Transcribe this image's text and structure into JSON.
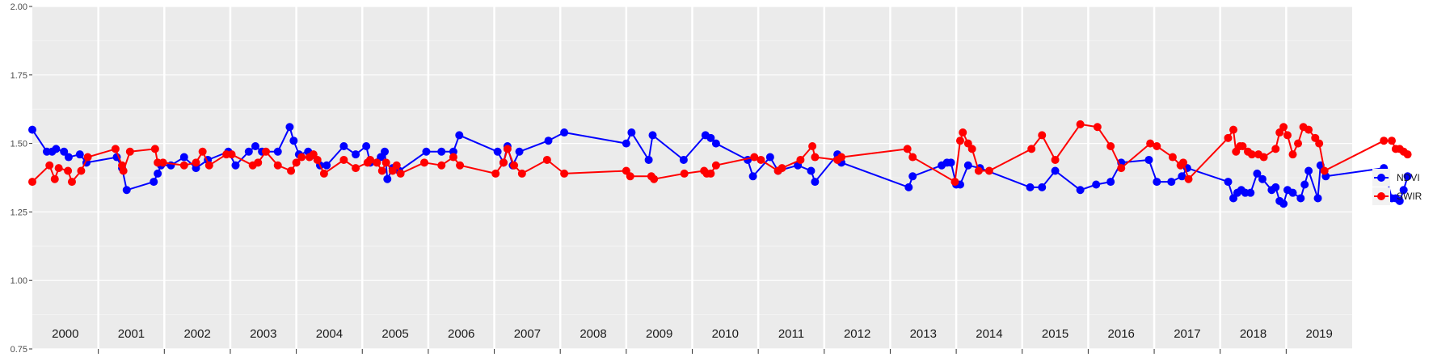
{
  "chart_data": {
    "type": "line",
    "title": "",
    "xlabel": "",
    "ylabel": "",
    "ylim": [
      0.75,
      2.0
    ],
    "yticks": [
      "0.75",
      "1.00",
      "1.25",
      "1.50",
      "1.75",
      "2.00"
    ],
    "ytick_values": [
      0.75,
      1.0,
      1.25,
      1.5,
      1.75,
      2.0
    ],
    "x_range": [
      2000.0,
      2020.0
    ],
    "year_labels": [
      "2000",
      "2001",
      "2002",
      "2003",
      "2004",
      "2005",
      "2006",
      "2007",
      "2008",
      "2009",
      "2010",
      "2011",
      "2012",
      "2013",
      "2014",
      "2015",
      "2016",
      "2017",
      "2018",
      "2019"
    ],
    "grid": true,
    "legend_position": "right",
    "series": [
      {
        "name": "NDVI",
        "color": "#0000ff",
        "points": [
          [
            2000.0,
            1.55
          ],
          [
            2000.22,
            1.47
          ],
          [
            2000.3,
            1.47
          ],
          [
            2000.36,
            1.48
          ],
          [
            2000.48,
            1.47
          ],
          [
            2000.55,
            1.45
          ],
          [
            2000.72,
            1.46
          ],
          [
            2000.82,
            1.43
          ],
          [
            2001.28,
            1.45
          ],
          [
            2001.36,
            1.41
          ],
          [
            2001.43,
            1.33
          ],
          [
            2001.84,
            1.36
          ],
          [
            2001.9,
            1.39
          ],
          [
            2001.95,
            1.42
          ],
          [
            2002.1,
            1.42
          ],
          [
            2002.3,
            1.45
          ],
          [
            2002.48,
            1.41
          ],
          [
            2002.66,
            1.44
          ],
          [
            2002.97,
            1.47
          ],
          [
            2003.08,
            1.42
          ],
          [
            2003.28,
            1.47
          ],
          [
            2003.38,
            1.49
          ],
          [
            2003.48,
            1.47
          ],
          [
            2003.72,
            1.47
          ],
          [
            2003.9,
            1.56
          ],
          [
            2003.96,
            1.51
          ],
          [
            2004.04,
            1.46
          ],
          [
            2004.18,
            1.47
          ],
          [
            2004.36,
            1.42
          ],
          [
            2004.46,
            1.42
          ],
          [
            2004.72,
            1.49
          ],
          [
            2004.9,
            1.46
          ],
          [
            2005.06,
            1.49
          ],
          [
            2005.12,
            1.43
          ],
          [
            2005.28,
            1.45
          ],
          [
            2005.34,
            1.47
          ],
          [
            2005.38,
            1.37
          ],
          [
            2005.46,
            1.41
          ],
          [
            2005.56,
            1.4
          ],
          [
            2005.97,
            1.47
          ],
          [
            2006.2,
            1.47
          ],
          [
            2006.38,
            1.47
          ],
          [
            2006.47,
            1.53
          ],
          [
            2007.05,
            1.47
          ],
          [
            2007.14,
            1.43
          ],
          [
            2007.2,
            1.49
          ],
          [
            2007.28,
            1.42
          ],
          [
            2007.38,
            1.47
          ],
          [
            2007.82,
            1.51
          ],
          [
            2008.06,
            1.54
          ],
          [
            2009.0,
            1.5
          ],
          [
            2009.08,
            1.54
          ],
          [
            2009.34,
            1.44
          ],
          [
            2009.4,
            1.53
          ],
          [
            2009.87,
            1.44
          ],
          [
            2010.2,
            1.53
          ],
          [
            2010.28,
            1.52
          ],
          [
            2010.36,
            1.5
          ],
          [
            2010.84,
            1.44
          ],
          [
            2010.92,
            1.38
          ],
          [
            2011.18,
            1.45
          ],
          [
            2011.3,
            1.4
          ],
          [
            2011.6,
            1.42
          ],
          [
            2011.8,
            1.4
          ],
          [
            2011.86,
            1.36
          ],
          [
            2012.2,
            1.46
          ],
          [
            2012.26,
            1.43
          ],
          [
            2013.28,
            1.34
          ],
          [
            2013.34,
            1.38
          ],
          [
            2013.78,
            1.42
          ],
          [
            2013.86,
            1.43
          ],
          [
            2013.92,
            1.43
          ],
          [
            2014.0,
            1.35
          ],
          [
            2014.06,
            1.35
          ],
          [
            2014.18,
            1.42
          ],
          [
            2014.36,
            1.41
          ],
          [
            2015.12,
            1.34
          ],
          [
            2015.3,
            1.34
          ],
          [
            2015.5,
            1.4
          ],
          [
            2015.88,
            1.33
          ],
          [
            2016.12,
            1.35
          ],
          [
            2016.34,
            1.36
          ],
          [
            2016.5,
            1.43
          ],
          [
            2016.92,
            1.44
          ],
          [
            2017.04,
            1.36
          ],
          [
            2017.26,
            1.36
          ],
          [
            2017.42,
            1.38
          ],
          [
            2017.5,
            1.41
          ],
          [
            2018.12,
            1.36
          ],
          [
            2018.2,
            1.3
          ],
          [
            2018.26,
            1.32
          ],
          [
            2018.32,
            1.33
          ],
          [
            2018.38,
            1.32
          ],
          [
            2018.46,
            1.32
          ],
          [
            2018.56,
            1.39
          ],
          [
            2018.64,
            1.37
          ],
          [
            2018.78,
            1.33
          ],
          [
            2018.84,
            1.34
          ],
          [
            2018.9,
            1.29
          ],
          [
            2018.96,
            1.28
          ],
          [
            2019.02,
            1.33
          ],
          [
            2019.1,
            1.32
          ],
          [
            2019.22,
            1.3
          ],
          [
            2019.28,
            1.35
          ],
          [
            2019.34,
            1.4
          ],
          [
            2019.48,
            1.3
          ],
          [
            2019.52,
            1.42
          ],
          [
            2019.6,
            1.38
          ],
          [
            2020.48,
            1.41
          ],
          [
            2020.6,
            1.3
          ],
          [
            2020.66,
            1.3
          ],
          [
            2020.72,
            1.29
          ],
          [
            2020.78,
            1.33
          ],
          [
            2020.84,
            1.38
          ]
        ]
      },
      {
        "name": "SWIR",
        "color": "#ff0000",
        "points": [
          [
            2000.0,
            1.36
          ],
          [
            2000.26,
            1.42
          ],
          [
            2000.34,
            1.37
          ],
          [
            2000.4,
            1.41
          ],
          [
            2000.54,
            1.4
          ],
          [
            2000.6,
            1.36
          ],
          [
            2000.74,
            1.4
          ],
          [
            2000.84,
            1.45
          ],
          [
            2001.26,
            1.48
          ],
          [
            2001.36,
            1.42
          ],
          [
            2001.38,
            1.4
          ],
          [
            2001.48,
            1.47
          ],
          [
            2001.86,
            1.48
          ],
          [
            2001.9,
            1.43
          ],
          [
            2001.98,
            1.43
          ],
          [
            2002.3,
            1.42
          ],
          [
            2002.48,
            1.43
          ],
          [
            2002.58,
            1.47
          ],
          [
            2002.68,
            1.42
          ],
          [
            2002.94,
            1.46
          ],
          [
            2003.02,
            1.46
          ],
          [
            2003.34,
            1.42
          ],
          [
            2003.42,
            1.43
          ],
          [
            2003.54,
            1.47
          ],
          [
            2003.72,
            1.42
          ],
          [
            2003.92,
            1.4
          ],
          [
            2004.0,
            1.43
          ],
          [
            2004.08,
            1.45
          ],
          [
            2004.2,
            1.45
          ],
          [
            2004.26,
            1.46
          ],
          [
            2004.32,
            1.44
          ],
          [
            2004.42,
            1.39
          ],
          [
            2004.72,
            1.44
          ],
          [
            2004.9,
            1.41
          ],
          [
            2005.08,
            1.43
          ],
          [
            2005.12,
            1.44
          ],
          [
            2005.22,
            1.43
          ],
          [
            2005.3,
            1.4
          ],
          [
            2005.36,
            1.43
          ],
          [
            2005.46,
            1.4
          ],
          [
            2005.52,
            1.42
          ],
          [
            2005.58,
            1.39
          ],
          [
            2005.94,
            1.43
          ],
          [
            2006.2,
            1.42
          ],
          [
            2006.38,
            1.45
          ],
          [
            2006.48,
            1.42
          ],
          [
            2007.02,
            1.39
          ],
          [
            2007.14,
            1.43
          ],
          [
            2007.2,
            1.48
          ],
          [
            2007.3,
            1.42
          ],
          [
            2007.42,
            1.39
          ],
          [
            2007.8,
            1.44
          ],
          [
            2008.06,
            1.39
          ],
          [
            2009.0,
            1.4
          ],
          [
            2009.06,
            1.38
          ],
          [
            2009.38,
            1.38
          ],
          [
            2009.42,
            1.37
          ],
          [
            2009.88,
            1.39
          ],
          [
            2010.18,
            1.4
          ],
          [
            2010.22,
            1.39
          ],
          [
            2010.28,
            1.39
          ],
          [
            2010.36,
            1.42
          ],
          [
            2010.94,
            1.45
          ],
          [
            2011.04,
            1.44
          ],
          [
            2011.3,
            1.4
          ],
          [
            2011.36,
            1.41
          ],
          [
            2011.64,
            1.44
          ],
          [
            2011.82,
            1.49
          ],
          [
            2011.86,
            1.45
          ],
          [
            2012.2,
            1.44
          ],
          [
            2012.26,
            1.45
          ],
          [
            2013.26,
            1.48
          ],
          [
            2013.34,
            1.45
          ],
          [
            2013.98,
            1.36
          ],
          [
            2014.06,
            1.51
          ],
          [
            2014.1,
            1.54
          ],
          [
            2014.18,
            1.5
          ],
          [
            2014.24,
            1.48
          ],
          [
            2014.34,
            1.4
          ],
          [
            2014.5,
            1.4
          ],
          [
            2015.14,
            1.48
          ],
          [
            2015.3,
            1.53
          ],
          [
            2015.5,
            1.44
          ],
          [
            2015.88,
            1.57
          ],
          [
            2016.14,
            1.56
          ],
          [
            2016.34,
            1.49
          ],
          [
            2016.5,
            1.41
          ],
          [
            2016.94,
            1.5
          ],
          [
            2017.04,
            1.49
          ],
          [
            2017.28,
            1.45
          ],
          [
            2017.4,
            1.42
          ],
          [
            2017.44,
            1.43
          ],
          [
            2017.52,
            1.37
          ],
          [
            2018.12,
            1.52
          ],
          [
            2018.2,
            1.55
          ],
          [
            2018.24,
            1.47
          ],
          [
            2018.3,
            1.49
          ],
          [
            2018.34,
            1.49
          ],
          [
            2018.42,
            1.47
          ],
          [
            2018.48,
            1.46
          ],
          [
            2018.58,
            1.46
          ],
          [
            2018.66,
            1.45
          ],
          [
            2018.84,
            1.48
          ],
          [
            2018.9,
            1.54
          ],
          [
            2018.96,
            1.56
          ],
          [
            2019.02,
            1.53
          ],
          [
            2019.1,
            1.46
          ],
          [
            2019.18,
            1.5
          ],
          [
            2019.26,
            1.56
          ],
          [
            2019.34,
            1.55
          ],
          [
            2019.44,
            1.52
          ],
          [
            2019.5,
            1.5
          ],
          [
            2019.58,
            1.4
          ],
          [
            2020.48,
            1.51
          ],
          [
            2020.6,
            1.51
          ],
          [
            2020.66,
            1.48
          ],
          [
            2020.72,
            1.48
          ],
          [
            2020.78,
            1.47
          ],
          [
            2020.84,
            1.46
          ]
        ]
      }
    ]
  }
}
